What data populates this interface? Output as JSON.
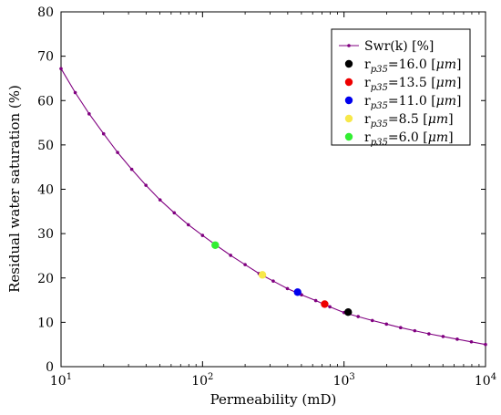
{
  "chart_data": {
    "type": "scatter",
    "xscale": "log",
    "xlim": [
      10,
      10000
    ],
    "ylim": [
      0,
      80
    ],
    "xlabel": "Permeability (mD)",
    "ylabel": "Residual water saturation (%)",
    "x_ticks": [
      {
        "value": 10,
        "base": "10",
        "exp": "1"
      },
      {
        "value": 100,
        "base": "10",
        "exp": "2"
      },
      {
        "value": 1000,
        "base": "10",
        "exp": "3"
      },
      {
        "value": 10000,
        "base": "10",
        "exp": "4"
      }
    ],
    "y_ticks": [
      0,
      10,
      20,
      30,
      40,
      50,
      60,
      70,
      80
    ],
    "grid": false,
    "legend_position": "top-right",
    "curve": {
      "name": "Swr(k) [%]",
      "color": "#800080",
      "x": [
        10,
        12.6,
        15.8,
        20,
        25.1,
        31.6,
        39.8,
        50.1,
        63.1,
        79.4,
        100,
        126,
        158,
        200,
        251,
        316,
        398,
        501,
        631,
        794,
        1000,
        1259,
        1585,
        1995,
        2512,
        3162,
        3981,
        5012,
        6310,
        7943,
        10000
      ],
      "y": [
        67.2,
        61.8,
        57.0,
        52.5,
        48.3,
        44.5,
        40.9,
        37.6,
        34.7,
        32.0,
        29.6,
        27.3,
        25.1,
        23.0,
        21.0,
        19.3,
        17.6,
        16.2,
        14.9,
        13.5,
        12.2,
        11.3,
        10.4,
        9.6,
        8.8,
        8.1,
        7.4,
        6.8,
        6.2,
        5.6,
        5.0
      ]
    },
    "points": [
      {
        "label": "r_p35=16.0 [μm]",
        "sub": "p35",
        "value": "=16.0",
        "unit": "μm",
        "x": 1070,
        "y": 12.3,
        "color": "#000000"
      },
      {
        "label": "r_p35=13.5 [μm]",
        "sub": "p35",
        "value": "=13.5",
        "unit": "μm",
        "x": 730,
        "y": 14.1,
        "color": "#ee0000"
      },
      {
        "label": "r_p35=11.0 [μm]",
        "sub": "p35",
        "value": "=11.0",
        "unit": "μm",
        "x": 470,
        "y": 16.8,
        "color": "#0000ee"
      },
      {
        "label": "r_p35=8.5 [μm]",
        "sub": "p35",
        "value": "=8.5",
        "unit": "μm",
        "x": 265,
        "y": 20.7,
        "color": "#f7e84a"
      },
      {
        "label": "r_p35=6.0 [μm]",
        "sub": "p35",
        "value": "=6.0",
        "unit": "μm",
        "x": 123,
        "y": 27.4,
        "color": "#33ee33"
      }
    ]
  }
}
